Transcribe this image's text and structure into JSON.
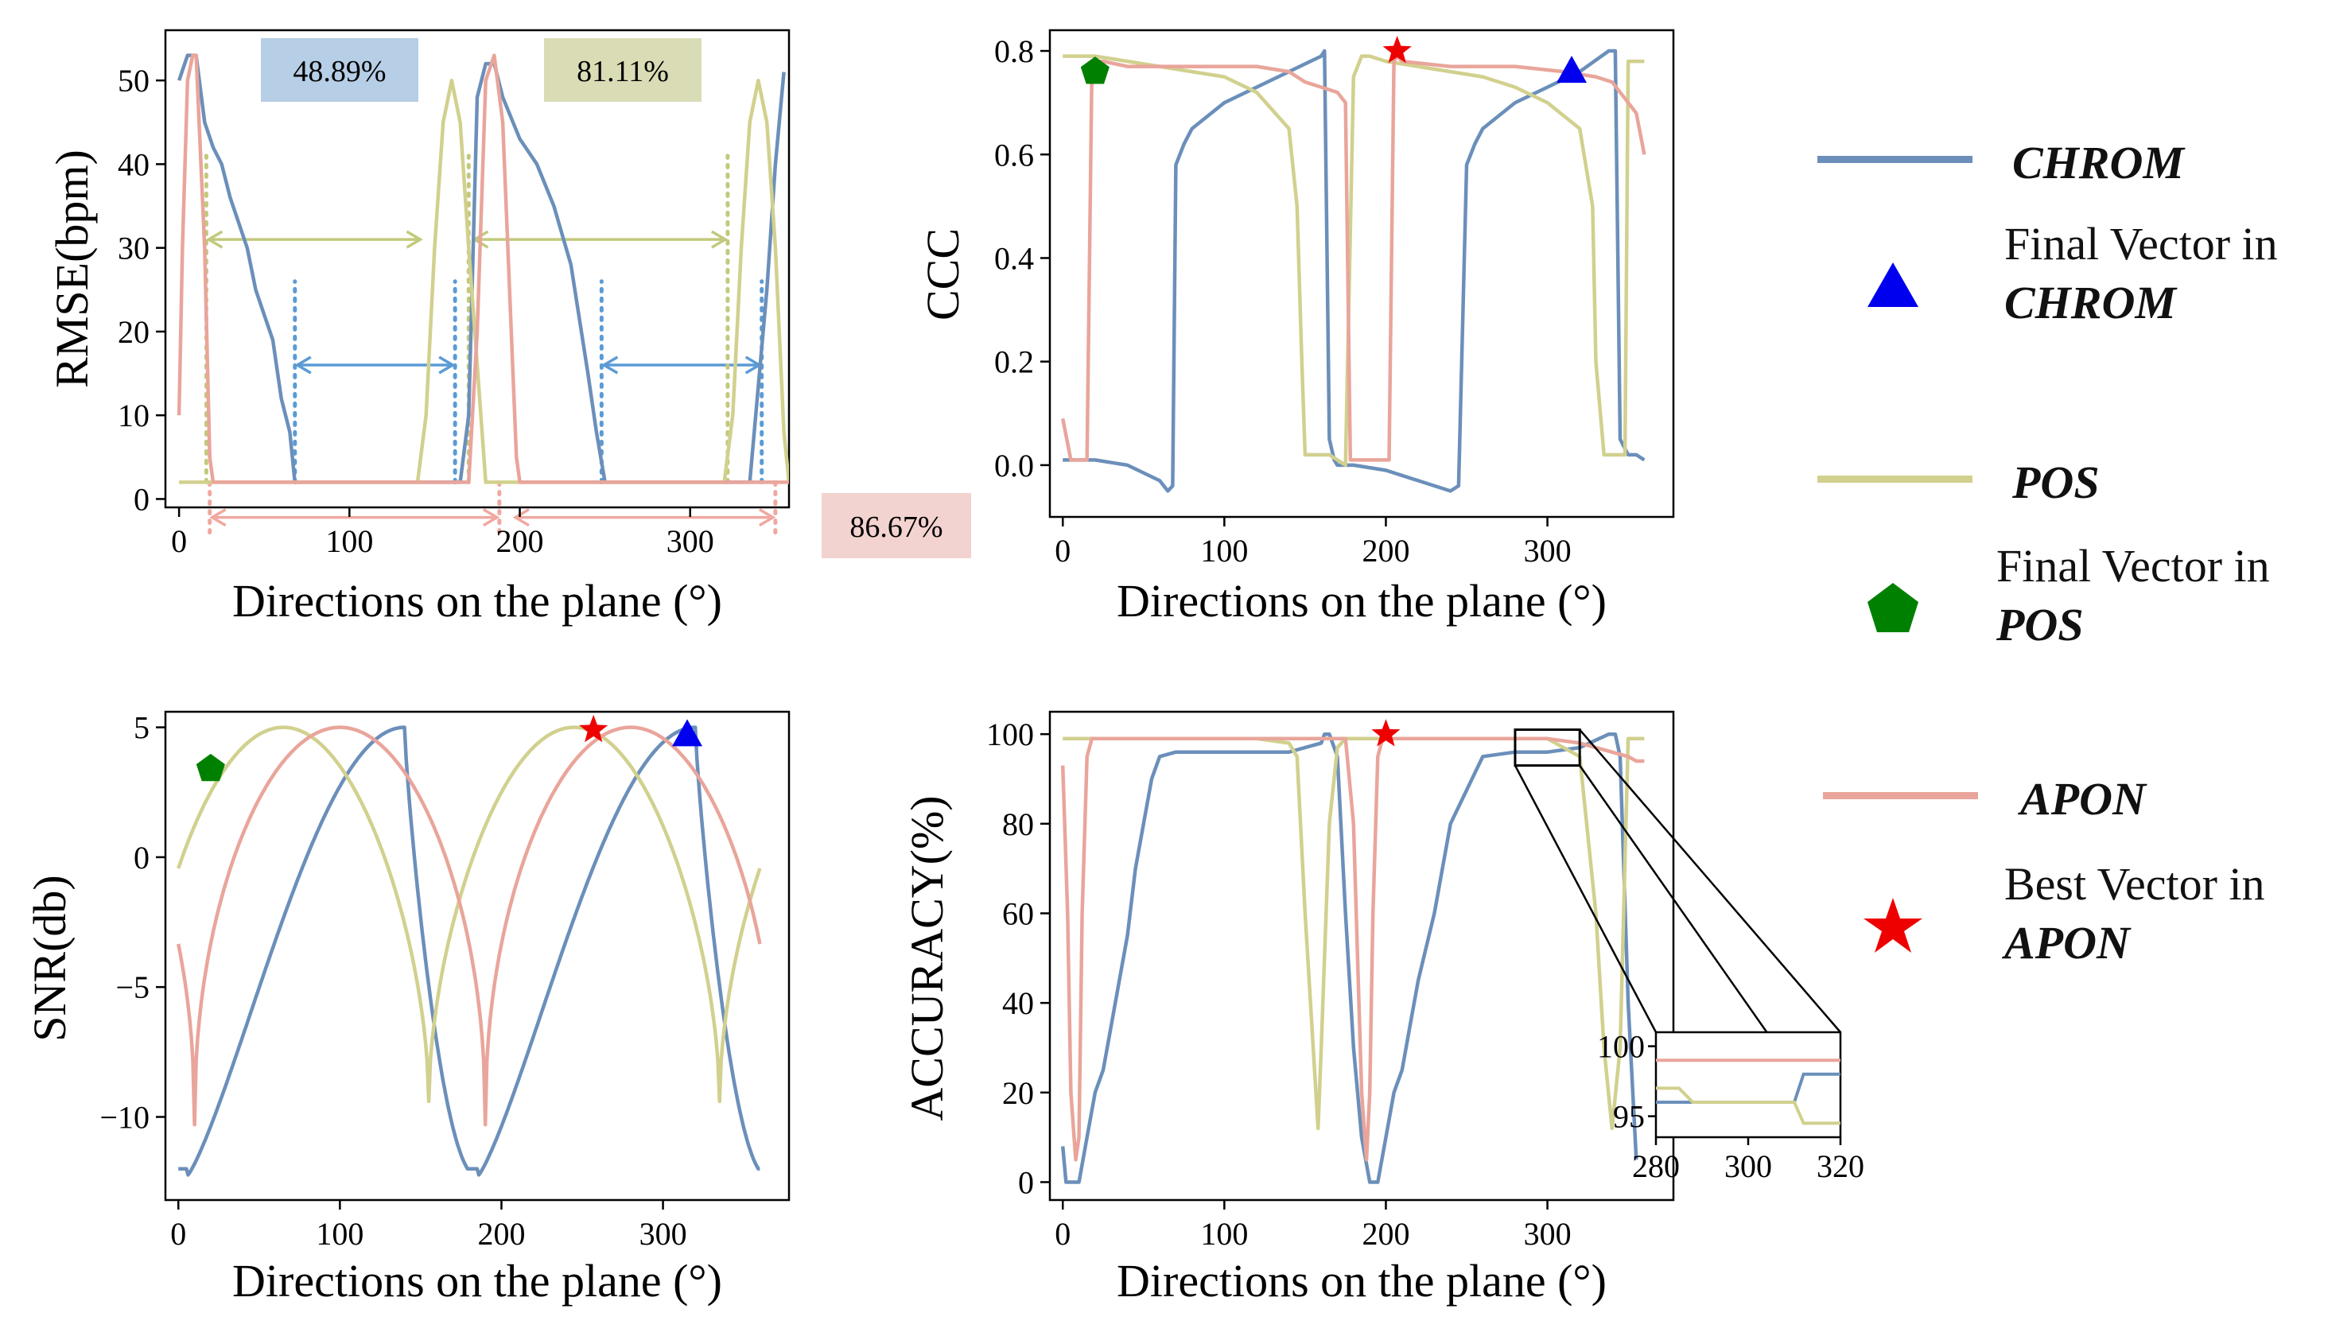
{
  "colors": {
    "chrom": "#6b8fba",
    "pos": "#d1d08e",
    "apon": "#e9a59b",
    "blue_marker": "#0000ee",
    "green_marker": "#008000",
    "red_marker": "#ee0000",
    "arrow_blue": "#5b9bd5",
    "arrow_olive": "#c3c97c",
    "arrow_pink": "#f0a8a0"
  },
  "legend": {
    "chrom_label": "CHROM",
    "chrom_final_1": "Final Vector in",
    "chrom_final_2": "CHROM",
    "pos_label": "POS",
    "pos_final_1": "Final Vector in",
    "pos_final_2": "POS",
    "apon_label": "APON",
    "apon_best_1": "Best Vector in",
    "apon_best_2": "APON"
  },
  "annotations": {
    "box1": "48.89%",
    "box2": "81.11%",
    "box3": "86.67%"
  },
  "chart_data": [
    {
      "type": "line",
      "id": "rmse",
      "xlabel": "Directions on the plane (°)",
      "ylabel": "RMSE(bpm)",
      "xlim": [
        -8,
        358
      ],
      "ylim": [
        -1,
        56
      ],
      "xticks": [
        0,
        100,
        200,
        300
      ],
      "yticks": [
        0,
        10,
        20,
        30,
        40,
        50
      ],
      "series": [
        {
          "name": "CHROM",
          "color_key": "chrom",
          "x": [
            0,
            5,
            10,
            15,
            20,
            25,
            30,
            35,
            40,
            45,
            50,
            55,
            60,
            65,
            68,
            70,
            80,
            100,
            120,
            140,
            160,
            165,
            170,
            175,
            180,
            185,
            190,
            200,
            210,
            220,
            230,
            240,
            245,
            250,
            260,
            280,
            300,
            320,
            335,
            345,
            350,
            355
          ],
          "y": [
            50,
            53,
            53,
            45,
            42,
            40,
            36,
            33,
            30,
            25,
            22,
            19,
            12,
            8,
            2,
            2,
            2,
            2,
            2,
            2,
            2,
            2,
            10,
            48,
            52,
            52,
            48,
            43,
            40,
            35,
            28,
            15,
            8,
            2,
            2,
            2,
            2,
            2,
            2,
            25,
            40,
            51
          ]
        },
        {
          "name": "POS",
          "color_key": "pos",
          "x": [
            0,
            50,
            100,
            140,
            145,
            150,
            155,
            160,
            165,
            170,
            180,
            200,
            250,
            300,
            320,
            325,
            330,
            335,
            340,
            345,
            350,
            355,
            358
          ],
          "y": [
            2,
            2,
            2,
            2,
            10,
            30,
            45,
            50,
            45,
            30,
            2,
            2,
            2,
            2,
            2,
            10,
            30,
            45,
            50,
            45,
            30,
            8,
            2
          ]
        },
        {
          "name": "APON",
          "color_key": "apon",
          "x": [
            0,
            2,
            5,
            8,
            10,
            15,
            18,
            20,
            25,
            40,
            80,
            120,
            160,
            170,
            175,
            180,
            185,
            190,
            195,
            198,
            200,
            205,
            250,
            300,
            340,
            345,
            350,
            355,
            358
          ],
          "y": [
            10,
            30,
            50,
            53,
            53,
            30,
            5,
            2,
            2,
            2,
            2,
            2,
            2,
            2,
            20,
            50,
            53,
            45,
            20,
            5,
            2,
            2,
            2,
            2,
            2,
            2,
            2,
            2,
            2
          ]
        }
      ]
    },
    {
      "type": "line",
      "id": "ccc",
      "xlabel": "Directions on the plane (°)",
      "ylabel": "CCC",
      "xlim": [
        -8,
        378
      ],
      "ylim": [
        -0.1,
        0.84
      ],
      "xticks": [
        0,
        100,
        200,
        300
      ],
      "yticks": [
        0.0,
        0.2,
        0.4,
        0.6,
        0.8
      ],
      "ytick_labels": [
        "0.0",
        "0.2",
        "0.4",
        "0.6",
        "0.8"
      ],
      "series": [
        {
          "name": "CHROM",
          "color_key": "chrom",
          "x": [
            0,
            20,
            40,
            60,
            65,
            68,
            70,
            75,
            80,
            100,
            120,
            140,
            160,
            162,
            165,
            168,
            170,
            180,
            200,
            220,
            240,
            245,
            250,
            255,
            260,
            280,
            300,
            320,
            338,
            342,
            345,
            350,
            355,
            360
          ],
          "y": [
            0.01,
            0.01,
            0.0,
            -0.03,
            -0.05,
            -0.04,
            0.58,
            0.62,
            0.65,
            0.7,
            0.73,
            0.76,
            0.79,
            0.8,
            0.05,
            0.01,
            0.0,
            0.0,
            -0.01,
            -0.03,
            -0.05,
            -0.04,
            0.58,
            0.62,
            0.65,
            0.7,
            0.73,
            0.76,
            0.8,
            0.8,
            0.05,
            0.02,
            0.02,
            0.01
          ]
        },
        {
          "name": "POS",
          "color_key": "pos",
          "x": [
            0,
            10,
            20,
            40,
            60,
            80,
            100,
            120,
            140,
            145,
            148,
            150,
            155,
            160,
            165,
            170,
            175,
            180,
            185,
            190,
            200,
            220,
            240,
            260,
            280,
            300,
            320,
            328,
            330,
            335,
            340,
            345,
            348,
            350,
            355,
            360
          ],
          "y": [
            0.79,
            0.79,
            0.79,
            0.78,
            0.77,
            0.76,
            0.75,
            0.72,
            0.65,
            0.5,
            0.2,
            0.02,
            0.02,
            0.02,
            0.02,
            0.01,
            0.0,
            0.75,
            0.79,
            0.79,
            0.78,
            0.77,
            0.76,
            0.75,
            0.73,
            0.7,
            0.65,
            0.5,
            0.2,
            0.02,
            0.02,
            0.02,
            0.02,
            0.78,
            0.78,
            0.78
          ]
        },
        {
          "name": "APON",
          "color_key": "apon",
          "x": [
            0,
            5,
            15,
            18,
            20,
            25,
            40,
            80,
            120,
            140,
            150,
            160,
            170,
            175,
            178,
            180,
            185,
            200,
            202,
            205,
            207,
            210,
            240,
            280,
            310,
            330,
            340,
            345,
            350,
            355,
            360
          ],
          "y": [
            0.09,
            0.01,
            0.01,
            0.76,
            0.78,
            0.78,
            0.77,
            0.77,
            0.77,
            0.76,
            0.74,
            0.73,
            0.72,
            0.7,
            0.01,
            0.01,
            0.01,
            0.01,
            0.01,
            0.78,
            0.79,
            0.78,
            0.77,
            0.77,
            0.76,
            0.75,
            0.74,
            0.72,
            0.7,
            0.68,
            0.6
          ]
        }
      ],
      "markers": [
        {
          "shape": "pentagon",
          "color_key": "green_marker",
          "x": 20,
          "y": 0.76
        },
        {
          "shape": "star",
          "color_key": "red_marker",
          "x": 207,
          "y": 0.8
        },
        {
          "shape": "triangle",
          "color_key": "blue_marker",
          "x": 315,
          "y": 0.76
        }
      ]
    },
    {
      "type": "line",
      "id": "snr",
      "xlabel": "Directions on the plane (°)",
      "ylabel": "SNR(db)",
      "xlim": [
        -8,
        378
      ],
      "ylim": [
        -13.2,
        5.6
      ],
      "xticks": [
        0,
        100,
        200,
        300
      ],
      "yticks": [
        -10,
        -5,
        0,
        5
      ],
      "ytick_labels": [
        "−10",
        "−5",
        "0",
        "5"
      ],
      "series": [
        {
          "name": "CHROM",
          "color_key": "chrom",
          "func": "chrom_snr"
        },
        {
          "name": "POS",
          "color_key": "pos",
          "func": "pos_snr"
        },
        {
          "name": "APON",
          "color_key": "apon",
          "func": "apon_snr"
        }
      ],
      "markers": [
        {
          "shape": "pentagon",
          "color_key": "green_marker",
          "x": 20,
          "y": 3.4
        },
        {
          "shape": "star",
          "color_key": "red_marker",
          "x": 257,
          "y": 4.9
        },
        {
          "shape": "triangle",
          "color_key": "blue_marker",
          "x": 315,
          "y": 4.7
        }
      ]
    },
    {
      "type": "line",
      "id": "accuracy",
      "xlabel": "Directions on the plane (°)",
      "ylabel": "ACCURACY(%)",
      "xlim": [
        -8,
        378
      ],
      "ylim": [
        -4,
        105
      ],
      "xticks": [
        0,
        100,
        200,
        300
      ],
      "yticks": [
        0,
        20,
        40,
        60,
        80,
        100
      ],
      "series": [
        {
          "name": "CHROM",
          "color_key": "chrom",
          "x": [
            0,
            2,
            5,
            10,
            15,
            20,
            25,
            30,
            35,
            40,
            45,
            50,
            55,
            60,
            70,
            80,
            100,
            120,
            140,
            160,
            162,
            165,
            170,
            175,
            180,
            185,
            190,
            195,
            200,
            205,
            210,
            215,
            220,
            230,
            240,
            260,
            280,
            300,
            320,
            338,
            342,
            345,
            350,
            355
          ],
          "y": [
            8,
            0,
            0,
            0,
            10,
            20,
            25,
            35,
            45,
            55,
            70,
            80,
            90,
            95,
            96,
            96,
            96,
            96,
            96,
            98,
            100,
            100,
            95,
            60,
            30,
            10,
            0,
            0,
            10,
            20,
            25,
            35,
            45,
            60,
            80,
            95,
            96,
            96,
            97,
            100,
            100,
            95,
            40,
            5
          ]
        },
        {
          "name": "POS",
          "color_key": "pos",
          "x": [
            0,
            40,
            80,
            120,
            140,
            145,
            150,
            155,
            158,
            160,
            165,
            170,
            175,
            180,
            200,
            240,
            280,
            300,
            320,
            330,
            335,
            340,
            345,
            350,
            355,
            360
          ],
          "y": [
            99,
            99,
            99,
            99,
            98,
            95,
            60,
            30,
            12,
            30,
            80,
            97,
            99,
            99,
            99,
            99,
            99,
            99,
            95,
            60,
            30,
            12,
            30,
            99,
            99,
            99
          ]
        },
        {
          "name": "APON",
          "color_key": "apon",
          "x": [
            0,
            3,
            5,
            8,
            10,
            12,
            15,
            18,
            20,
            40,
            80,
            120,
            160,
            175,
            180,
            185,
            188,
            190,
            192,
            195,
            198,
            200,
            240,
            280,
            300,
            320,
            340,
            350,
            355,
            360
          ],
          "y": [
            93,
            60,
            20,
            5,
            10,
            60,
            95,
            99,
            99,
            99,
            99,
            99,
            99,
            99,
            80,
            20,
            5,
            20,
            60,
            95,
            99,
            99,
            99,
            99,
            99,
            98,
            96,
            95,
            94,
            94
          ]
        }
      ],
      "markers": [
        {
          "shape": "star",
          "color_key": "red_marker",
          "x": 200,
          "y": 100
        }
      ],
      "inset": {
        "xlim": [
          280,
          320
        ],
        "ylim": [
          93.5,
          101
        ],
        "xticks": [
          280,
          300,
          320
        ],
        "yticks": [
          95,
          100
        ],
        "series": [
          {
            "color_key": "apon",
            "x": [
              280,
              320
            ],
            "y": [
              99,
              99
            ]
          },
          {
            "color_key": "chrom",
            "x": [
              280,
              290,
              292,
              298,
              300,
              310,
              312,
              320
            ],
            "y": [
              96,
              96,
              96,
              96,
              96,
              96,
              98,
              98
            ]
          },
          {
            "color_key": "pos",
            "x": [
              280,
              285,
              288,
              300,
              302,
              310,
              312,
              320
            ],
            "y": [
              97,
              97,
              96,
              96,
              96,
              96,
              94.5,
              94.5
            ]
          }
        ],
        "zoom_box": {
          "x": [
            280,
            320
          ],
          "y": [
            93,
            101
          ]
        }
      }
    }
  ]
}
